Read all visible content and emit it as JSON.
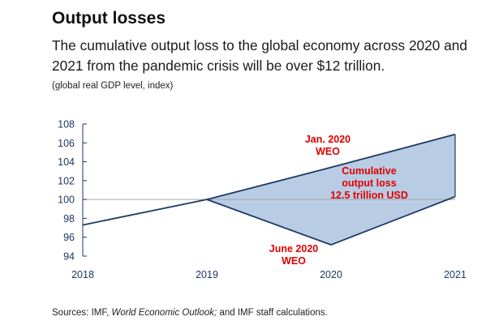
{
  "title": "Output losses",
  "subtitle": "The cumulative output loss to the global economy across 2020 and 2021 from the pandemic crisis will be over $12 trillion.",
  "unit_label": "(global real GDP level, index)",
  "source": {
    "prefix": "Sources: IMF, ",
    "italic": "World Economic Outlook;",
    "suffix": " and IMF staff calculations."
  },
  "colors": {
    "line": "#1f3864",
    "fill": "#b8cce4",
    "annotation": "#e00000",
    "axis_text": "#1f3864",
    "reference": "#a6a6a6"
  },
  "chart_data": {
    "type": "line",
    "x": [
      2018,
      2019,
      2020,
      2021
    ],
    "x_tick_labels": [
      "2018",
      "2019",
      "2020",
      "2021"
    ],
    "ylim": [
      94,
      108
    ],
    "y_ticks": [
      94,
      96,
      98,
      100,
      102,
      104,
      106,
      108
    ],
    "reference_line": 100,
    "series": [
      {
        "name": "Jan. 2020 WEO",
        "x": [
          2019,
          2020,
          2021
        ],
        "values": [
          100.0,
          103.4,
          106.9
        ]
      },
      {
        "name": "June 2020 WEO",
        "x": [
          2018,
          2019,
          2020,
          2021
        ],
        "values": [
          97.3,
          100.0,
          95.2,
          100.3
        ]
      }
    ],
    "annotations": {
      "jan_line1": "Jan. 2020",
      "jan_line2": "WEO",
      "june_line1": "June 2020",
      "june_line2": "WEO",
      "loss_line1": "Cumulative",
      "loss_line2": "output loss",
      "loss_line3": "12.5 trillion USD"
    }
  }
}
